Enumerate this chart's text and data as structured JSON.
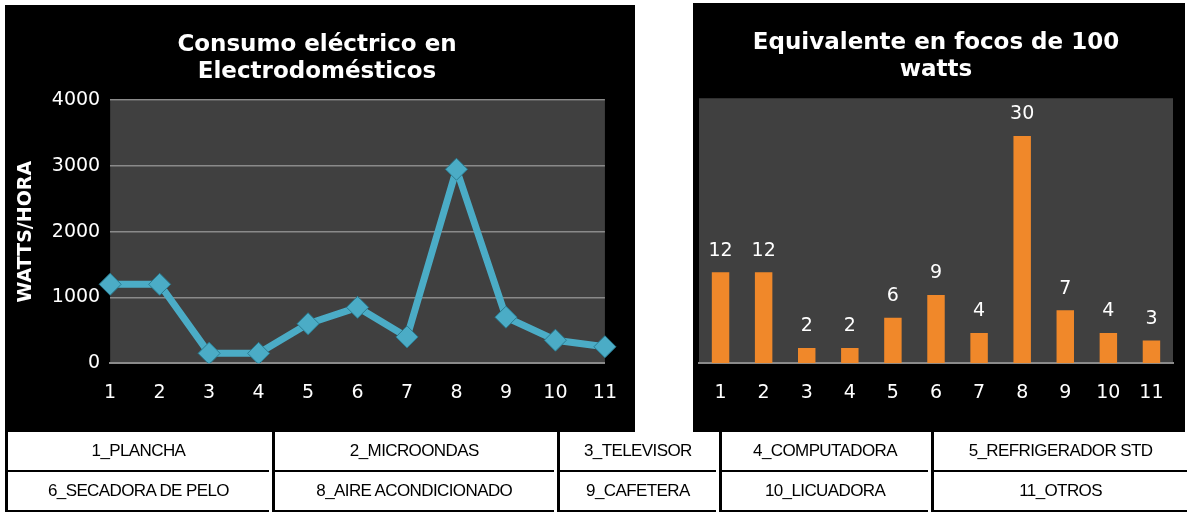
{
  "chart_data": [
    {
      "type": "line",
      "title": "Consumo eléctrico en Electrodomésticos",
      "ylabel": "WATTS/HORA",
      "categories": [
        "1",
        "2",
        "3",
        "4",
        "5",
        "6",
        "7",
        "8",
        "9",
        "10",
        "11"
      ],
      "series": [
        {
          "color": "#4bacc6",
          "values": [
            1200,
            1200,
            150,
            150,
            600,
            850,
            400,
            2950,
            700,
            350,
            250
          ]
        }
      ],
      "ylim": [
        0,
        4000
      ],
      "yticks": [
        0,
        1000,
        2000,
        3000,
        4000
      ],
      "grid": "y",
      "legend": false,
      "marker": "diamond"
    },
    {
      "type": "bar",
      "title": "Equivalente en focos de 100 watts",
      "categories": [
        "1",
        "2",
        "3",
        "4",
        "5",
        "6",
        "7",
        "8",
        "9",
        "10",
        "11"
      ],
      "series": [
        {
          "color": "#f0882a",
          "values": [
            12,
            12,
            2,
            2,
            6,
            9,
            4,
            30,
            7,
            4,
            3
          ]
        }
      ],
      "data_labels": true,
      "tick_labels": "x",
      "grid": false,
      "legend": false
    },
    {
      "type": "other",
      "annotations": [
        "1_PLANCHA",
        "2_MICROONDAS",
        "3_TELEVISOR",
        "4_COMPUTADORA",
        "5_REFRIGERADOR STD",
        "6_SECADORA DE PELO",
        "8_AIRE ACONDICIONADO",
        "9_CAFETERA",
        "10_LICUADORA",
        "11_OTROS"
      ]
    }
  ]
}
